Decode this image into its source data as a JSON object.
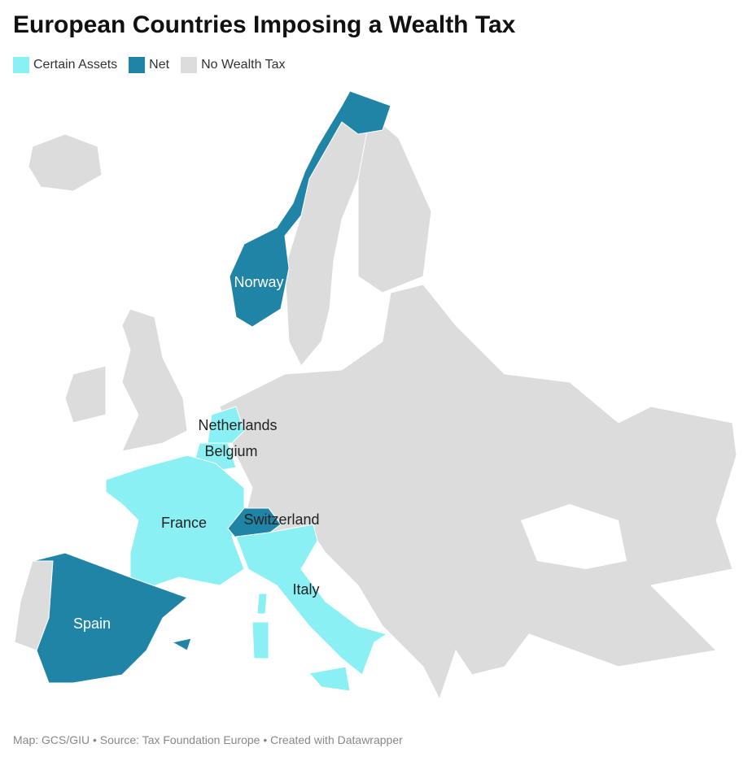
{
  "title": "European Countries Imposing a Wealth Tax",
  "legend": [
    {
      "label": "Certain Assets",
      "color": "#8af0f3"
    },
    {
      "label": "Net",
      "color": "#1f84a5"
    },
    {
      "label": "No Wealth Tax",
      "color": "#dcdcdc"
    }
  ],
  "countries": [
    {
      "label": "Norway",
      "category": 1
    },
    {
      "label": "Netherlands",
      "category": 0
    },
    {
      "label": "Belgium",
      "category": 0
    },
    {
      "label": "France",
      "category": 0
    },
    {
      "label": "Switzerland",
      "category": 1
    },
    {
      "label": "Italy",
      "category": 0
    },
    {
      "label": "Spain",
      "category": 1
    }
  ],
  "footer": "Map: GCS/GIU • Source: Tax Foundation Europe • Created with Datawrapper"
}
